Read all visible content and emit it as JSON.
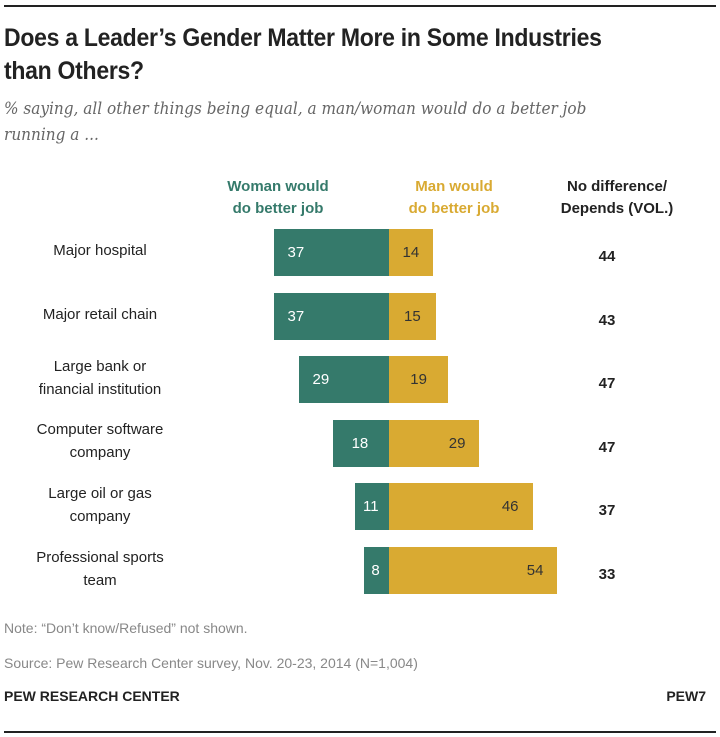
{
  "chart_data": {
    "type": "bar",
    "stacked": "diverging",
    "title": "Does a Leader’s Gender Matter More in Some Industries than Others?",
    "subtitle": "% saying, all other things being equal, a man/woman would do a better job running a ...",
    "categories": [
      "Major hospital",
      "Major retail chain",
      "Large bank or financial institution",
      "Computer software company",
      "Large oil or gas company",
      "Professional sports team"
    ],
    "category_lines": [
      [
        "Major hospital"
      ],
      [
        "Major retail chain"
      ],
      [
        "Large bank or",
        "financial institution"
      ],
      [
        "Computer software",
        "company"
      ],
      [
        "Large oil or gas",
        "company"
      ],
      [
        "Professional sports",
        "team"
      ]
    ],
    "series": [
      {
        "name": "Woman would do better job",
        "name_lines": [
          "Woman would",
          "do better job"
        ],
        "color": "#357a6b",
        "values": [
          37,
          37,
          29,
          18,
          11,
          8
        ]
      },
      {
        "name": "Man would do better job",
        "name_lines": [
          "Man would",
          "do better job"
        ],
        "color": "#d9aa32",
        "values": [
          14,
          15,
          19,
          29,
          46,
          54
        ]
      }
    ],
    "extra_column": {
      "name": "No difference/ Depends (VOL.)",
      "name_lines": [
        "No difference/",
        "Depends (VOL.)"
      ],
      "values": [
        44,
        43,
        47,
        47,
        37,
        33
      ]
    }
  },
  "note": "Note: “Don’t know/Refused” not shown.",
  "source": "Source: Pew Research Center survey, Nov. 20-23, 2014 (N=1,004)",
  "footer": {
    "org": "PEW RESEARCH CENTER",
    "code": "PEW7"
  }
}
